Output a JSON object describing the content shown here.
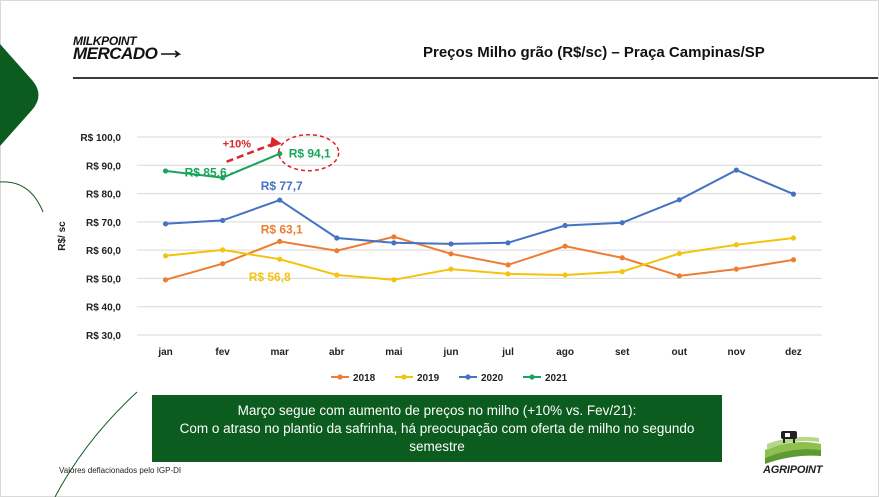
{
  "header": {
    "logo_line1": "MILKPOINT",
    "logo_line2": "MERCADO",
    "title": "Preços Milho grão (R$/sc) – Praça Campinas/SP"
  },
  "callout": {
    "line1": "Março segue com aumento de preços no milho (+10% vs. Fev/21):",
    "line2": "Com o atraso no plantio da safrinha, há preocupação com oferta de milho no segundo semestre"
  },
  "footnote": "Valores deflacionados pelo IGP-DI",
  "brand": {
    "name": "AGRIPOINT"
  },
  "colors": {
    "brand_green": "#0d5c1f",
    "series_2018": "#ed7d31",
    "series_2019": "#f2c40f",
    "series_2020": "#4472c4",
    "series_2021": "#18a55b",
    "highlight_red": "#d9252b"
  },
  "chart_data": {
    "type": "line",
    "title": "Preços Milho grão (R$/sc) – Praça Campinas/SP",
    "xlabel": "",
    "ylabel": "R$/ sc",
    "ylim": [
      30,
      100
    ],
    "y_ticks": [
      30,
      40,
      50,
      60,
      70,
      80,
      90,
      100
    ],
    "y_tick_labels": [
      "R$ 30,0",
      "R$ 40,0",
      "R$ 50,0",
      "R$ 60,0",
      "R$ 70,0",
      "R$ 80,0",
      "R$ 90,0",
      "R$ 100,0"
    ],
    "grid": true,
    "legend_position": "bottom",
    "categories": [
      "jan",
      "fev",
      "mar",
      "abr",
      "mai",
      "jun",
      "jul",
      "ago",
      "set",
      "out",
      "nov",
      "dez"
    ],
    "series": [
      {
        "name": "2018",
        "color": "#ed7d31",
        "values": [
          49.5,
          55.2,
          63.1,
          59.8,
          64.7,
          58.7,
          54.8,
          61.4,
          57.3,
          50.9,
          53.3,
          56.6
        ]
      },
      {
        "name": "2019",
        "color": "#f2c40f",
        "values": [
          58.0,
          60.1,
          56.8,
          51.2,
          49.5,
          53.3,
          51.6,
          51.2,
          52.4,
          58.8,
          61.9,
          64.3
        ]
      },
      {
        "name": "2020",
        "color": "#4472c4",
        "values": [
          69.3,
          70.5,
          77.7,
          64.3,
          62.6,
          62.2,
          62.6,
          68.7,
          69.7,
          77.8,
          88.3,
          79.8
        ]
      },
      {
        "name": "2021",
        "color": "#18a55b",
        "values": [
          88.0,
          85.6,
          94.1,
          null,
          null,
          null,
          null,
          null,
          null,
          null,
          null,
          null
        ]
      }
    ],
    "annotations": [
      {
        "text": "R$ 85,6",
        "series": "2021",
        "category": "fev",
        "color": "#18a55b"
      },
      {
        "text": "R$ 94,1",
        "series": "2021",
        "category": "mar",
        "color": "#18a55b"
      },
      {
        "text": "R$ 77,7",
        "series": "2020",
        "category": "mar",
        "color": "#4472c4"
      },
      {
        "text": "R$ 63,1",
        "series": "2018",
        "category": "mar",
        "color": "#ed7d31"
      },
      {
        "text": "R$ 56,8",
        "series": "2019",
        "category": "mar",
        "color": "#f2c40f"
      },
      {
        "text": "+10%",
        "series": "2021",
        "category": "fev",
        "color": "#d9252b"
      }
    ]
  }
}
